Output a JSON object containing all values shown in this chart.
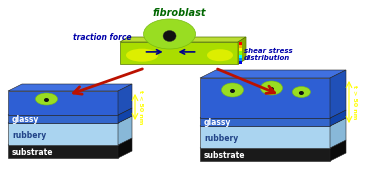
{
  "title": "fibroblast",
  "traction_force_label": "traction force",
  "shear_stress_label": "shear stress\ndistribution",
  "left_labels": [
    "glassy",
    "rubbery",
    "substrate"
  ],
  "right_labels": [
    "glassy",
    "rubbery",
    "substrate"
  ],
  "left_thickness_label": "t < 50 nm",
  "right_thickness_label": "t > 50 nm",
  "colors": {
    "blue_top": "#2255cc",
    "blue_side": "#1144aa",
    "blue_face": "#3366cc",
    "rubbery_face": "#aad4f0",
    "rubbery_side": "#88b8d8",
    "rubbery_top": "#c8e8f8",
    "substrate_face": "#1a1a1a",
    "substrate_side": "#0a0a0a",
    "substrate_top": "#2a2a2a",
    "cell_light": "#99dd22",
    "cell_mid": "#77bb11",
    "cell_dark": "#559900",
    "nucleus": "#111111",
    "yellow_bright": "#eeff00",
    "arrow_red": "#bb1100",
    "arrow_navy": "#000088",
    "text_green": "#006600",
    "text_blue": "#0000aa",
    "text_white": "#ffffff",
    "text_yellow": "#ffff00",
    "pad_green": "#aadd00",
    "pad_yellow": "#ddee00",
    "colorbar": [
      "#0000dd",
      "#0088ff",
      "#00ffff",
      "#88ff00",
      "#ffff00",
      "#ffaa00",
      "#ff0000"
    ]
  },
  "fig_width": 3.66,
  "fig_height": 1.89,
  "dpi": 100
}
